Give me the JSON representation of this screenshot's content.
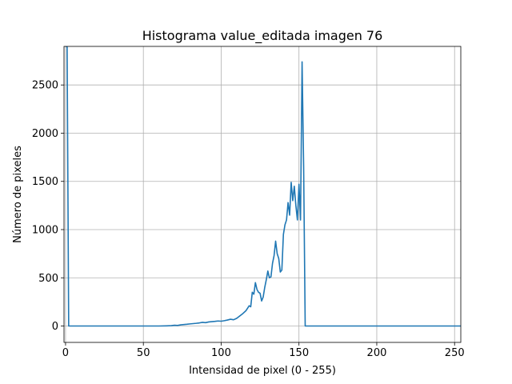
{
  "chart_data": {
    "type": "line",
    "title": "Histograma value_editada imagen 76",
    "xlabel": "Intensidad de pixel (0 - 255)",
    "ylabel": "Número de pixeles",
    "xlim": [
      -1,
      254
    ],
    "ylim": [
      -170,
      2900
    ],
    "xticks": [
      0,
      50,
      100,
      150,
      200,
      250
    ],
    "yticks": [
      0,
      500,
      1000,
      1500,
      2000,
      2500
    ],
    "grid": true,
    "legend": "none",
    "colors": {
      "line": "#1f77b4",
      "grid": "#b0b0b0"
    },
    "series": [
      {
        "x": [
          0,
          1,
          2,
          3,
          10,
          20,
          30,
          40,
          50,
          55,
          60,
          65,
          68,
          70,
          72,
          74,
          76,
          78,
          80,
          82,
          84,
          86,
          88,
          90,
          92,
          94,
          96,
          98,
          100,
          102,
          104,
          106,
          108,
          110,
          112,
          114,
          116,
          118,
          119,
          120,
          121,
          122,
          123,
          124,
          125,
          126,
          127,
          128,
          129,
          130,
          131,
          132,
          133,
          134,
          135,
          136,
          137,
          138,
          139,
          140,
          141,
          142,
          143,
          144,
          145,
          146,
          147,
          148,
          149,
          150,
          151,
          152,
          153,
          154,
          155,
          156,
          160,
          180,
          200,
          220,
          240,
          254
        ],
        "y": [
          2900,
          2900,
          0,
          0,
          0,
          0,
          0,
          0,
          0,
          0,
          0,
          2,
          4,
          8,
          6,
          12,
          15,
          18,
          22,
          25,
          28,
          32,
          38,
          35,
          42,
          45,
          48,
          52,
          50,
          55,
          62,
          70,
          65,
          80,
          105,
          130,
          160,
          210,
          200,
          350,
          330,
          450,
          380,
          350,
          340,
          260,
          300,
          400,
          480,
          570,
          500,
          510,
          650,
          730,
          880,
          750,
          700,
          560,
          580,
          950,
          1050,
          1100,
          1280,
          1150,
          1490,
          1300,
          1450,
          1250,
          1100,
          1470,
          1100,
          2740,
          1650,
          0,
          0,
          0,
          0,
          0,
          0,
          0,
          0,
          0
        ]
      }
    ]
  }
}
